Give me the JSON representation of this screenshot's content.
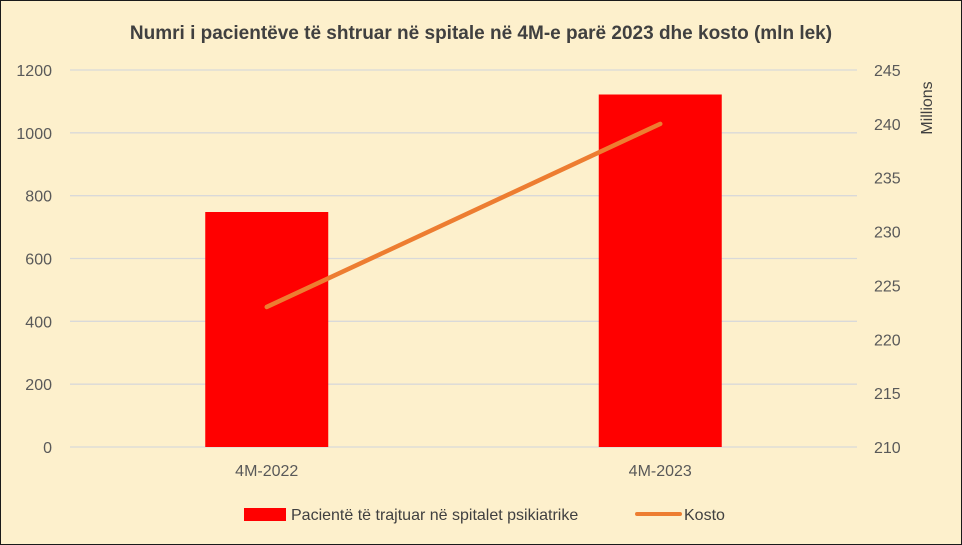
{
  "chart_data": {
    "type": "bar",
    "title": "Numri i pacientëve të shtruar në spitale në 4M-e parë 2023 dhe kosto (mln lek)",
    "categories": [
      "4M-2022",
      "4M-2023"
    ],
    "series": [
      {
        "name": "Pacientë të trajtuar në spitalet psikiatrike",
        "type": "bar",
        "axis": "left",
        "values": [
          748,
          1122
        ],
        "color": "#ff0000"
      },
      {
        "name": "Kosto",
        "type": "line",
        "axis": "right",
        "values": [
          223,
          240
        ],
        "color": "#ed7d31"
      }
    ],
    "y_left": {
      "range": [
        0,
        1200
      ],
      "ticks": [
        "0",
        "200",
        "400",
        "600",
        "800",
        "1000",
        "1200"
      ]
    },
    "y_right": {
      "label": "Millions",
      "range": [
        210,
        245
      ],
      "ticks": [
        "210",
        "215",
        "220",
        "225",
        "230",
        "235",
        "240",
        "245"
      ]
    },
    "grid": true,
    "legend": "bottom",
    "colors": {
      "background": "#fdf0cc",
      "gridline": "#d9d9d9"
    }
  }
}
